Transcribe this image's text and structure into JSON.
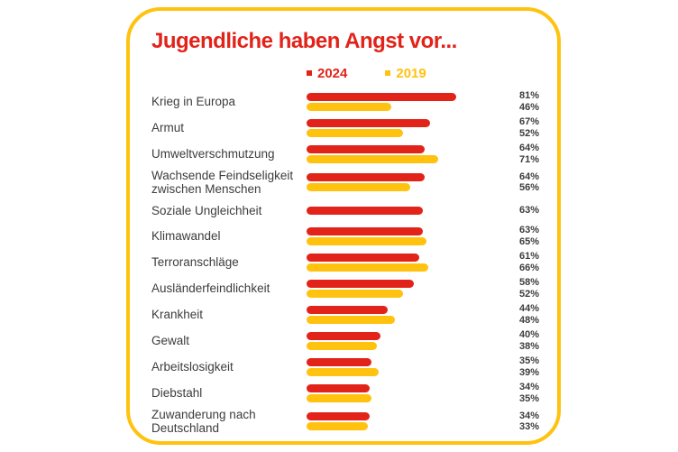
{
  "card": {
    "title": "Jugendliche haben Angst vor...",
    "border_color": "#FFC20E",
    "background_color": "#ffffff"
  },
  "colors": {
    "red": "#E2231A",
    "gold": "#FFC20E",
    "label_text": "#3C3C3B"
  },
  "legend": [
    {
      "label": "2024",
      "color": "#E2231A"
    },
    {
      "label": "2019",
      "color": "#FFC20E"
    }
  ],
  "chart_data": {
    "type": "bar",
    "orientation": "horizontal",
    "title": "Jugendliche haben Angst vor...",
    "unit": "%",
    "xlim": [
      0,
      100
    ],
    "value_labels": true,
    "legend_position": "top",
    "grid": false,
    "categories": [
      "Krieg in Europa",
      "Armut",
      "Umweltverschmutzung",
      "Wachsende Feindseligkeit zwischen Menschen",
      "Soziale Ungleichheit",
      "Klimawandel",
      "Terroranschläge",
      "Ausländerfeindlichkeit",
      "Krankheit",
      "Gewalt",
      "Arbeitslosigkeit",
      "Diebstahl",
      "Zuwanderung nach Deutschland"
    ],
    "series": [
      {
        "name": "2024",
        "color": "#E2231A",
        "values": [
          81,
          67,
          64,
          64,
          63,
          63,
          61,
          58,
          44,
          40,
          35,
          34,
          34
        ]
      },
      {
        "name": "2019",
        "color": "#FFC20E",
        "values": [
          46,
          52,
          71,
          56,
          null,
          65,
          66,
          52,
          48,
          38,
          39,
          35,
          33
        ]
      }
    ]
  }
}
